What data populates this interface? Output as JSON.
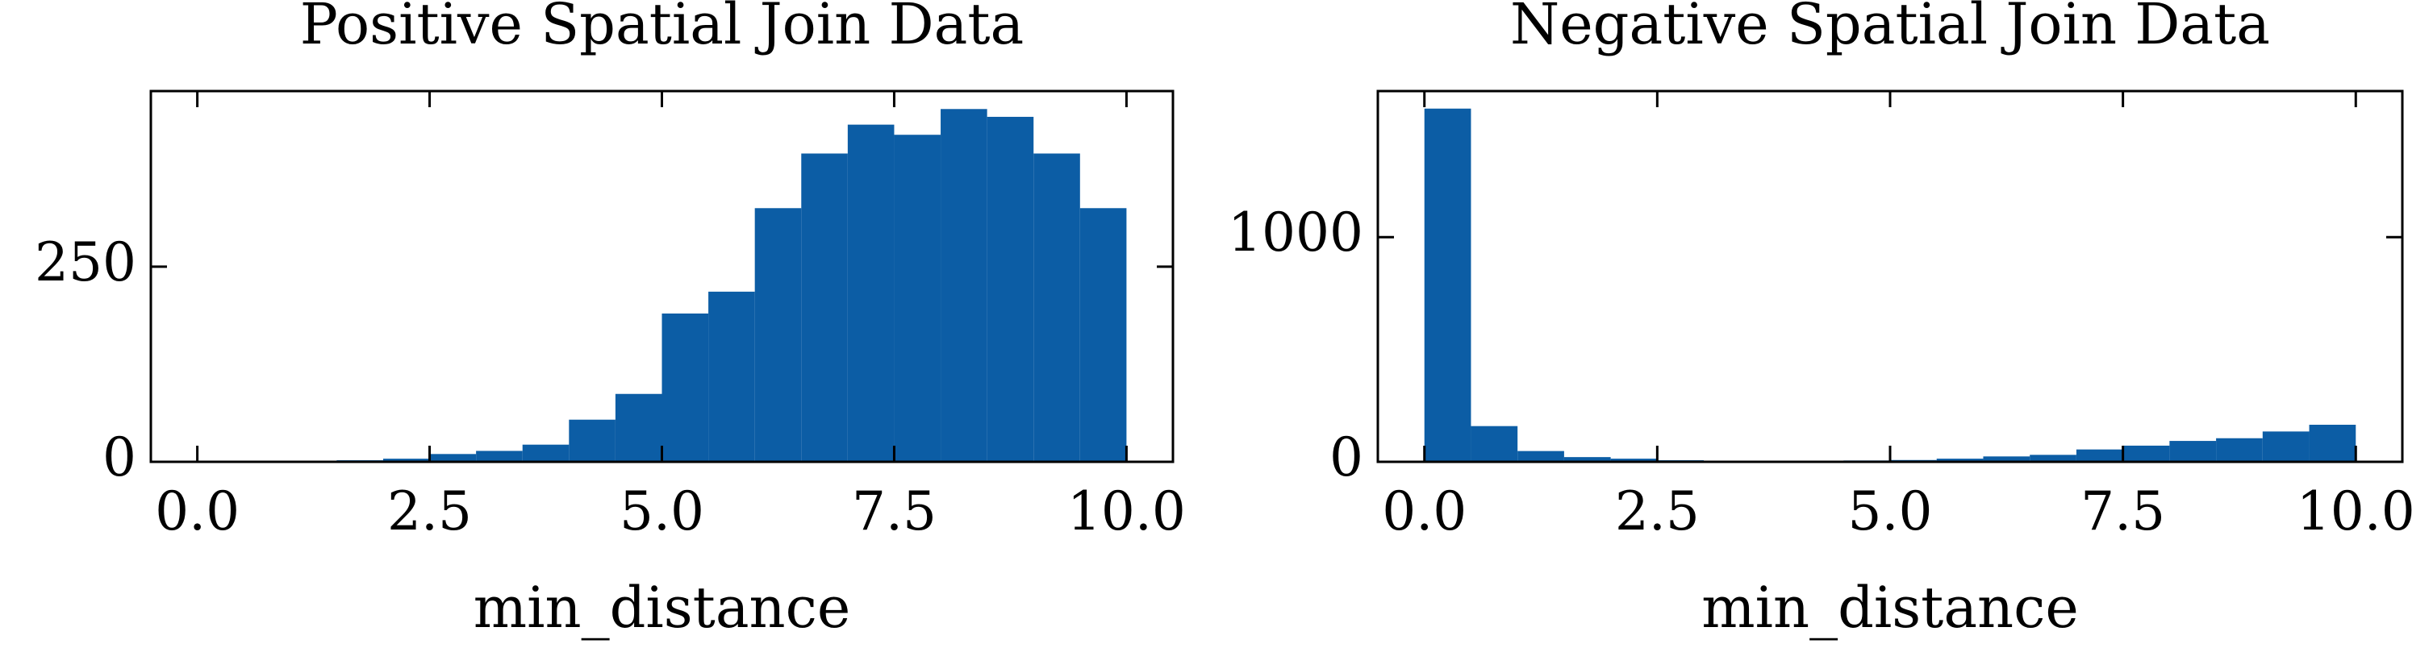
{
  "chart_data": [
    {
      "type": "histogram",
      "title": "Positive Spatial Join Data",
      "x_label": "min_distance",
      "color": "#0C5DA5",
      "bins": [
        0,
        0.5,
        1,
        1.5,
        2,
        2.5,
        3,
        3.5,
        4,
        4.5,
        5,
        5.5,
        6,
        6.5,
        7,
        7.5,
        8,
        8.5,
        9,
        9.5,
        10
      ],
      "counts": [
        0,
        1,
        1,
        2,
        4,
        10,
        14,
        22,
        54,
        87,
        190,
        218,
        325,
        395,
        432,
        419,
        452,
        442,
        395,
        325
      ],
      "xlim": [
        -0.5,
        10.5
      ],
      "ylim": [
        0,
        475
      ],
      "xticks": [
        {
          "value": 0,
          "label": "0.0"
        },
        2.5,
        {
          "value": 5,
          "label": "5.0"
        },
        7.5,
        {
          "value": 10,
          "label": "10.0"
        }
      ],
      "yticks": [
        0,
        250
      ]
    },
    {
      "type": "histogram",
      "title": "Negative Spatial Join Data",
      "x_label": "min_distance",
      "color": "#0C5DA5",
      "bins": [
        0,
        0.5,
        1,
        1.5,
        2,
        2.5,
        3,
        3.5,
        4,
        4.5,
        5,
        5.5,
        6,
        6.5,
        7,
        7.5,
        8,
        8.5,
        9,
        9.5,
        10
      ],
      "counts": [
        1572,
        159,
        48,
        21,
        14,
        7,
        5,
        4,
        5,
        6,
        8,
        14,
        24,
        31,
        55,
        72,
        93,
        105,
        135,
        165
      ],
      "xlim": [
        -0.5,
        10.5
      ],
      "ylim": [
        0,
        1650
      ],
      "xticks": [
        {
          "value": 0,
          "label": "0.0"
        },
        2.5,
        {
          "value": 5,
          "label": "5.0"
        },
        7.5,
        {
          "value": 10,
          "label": "10.0"
        }
      ],
      "yticks": [
        0,
        1000
      ]
    }
  ]
}
